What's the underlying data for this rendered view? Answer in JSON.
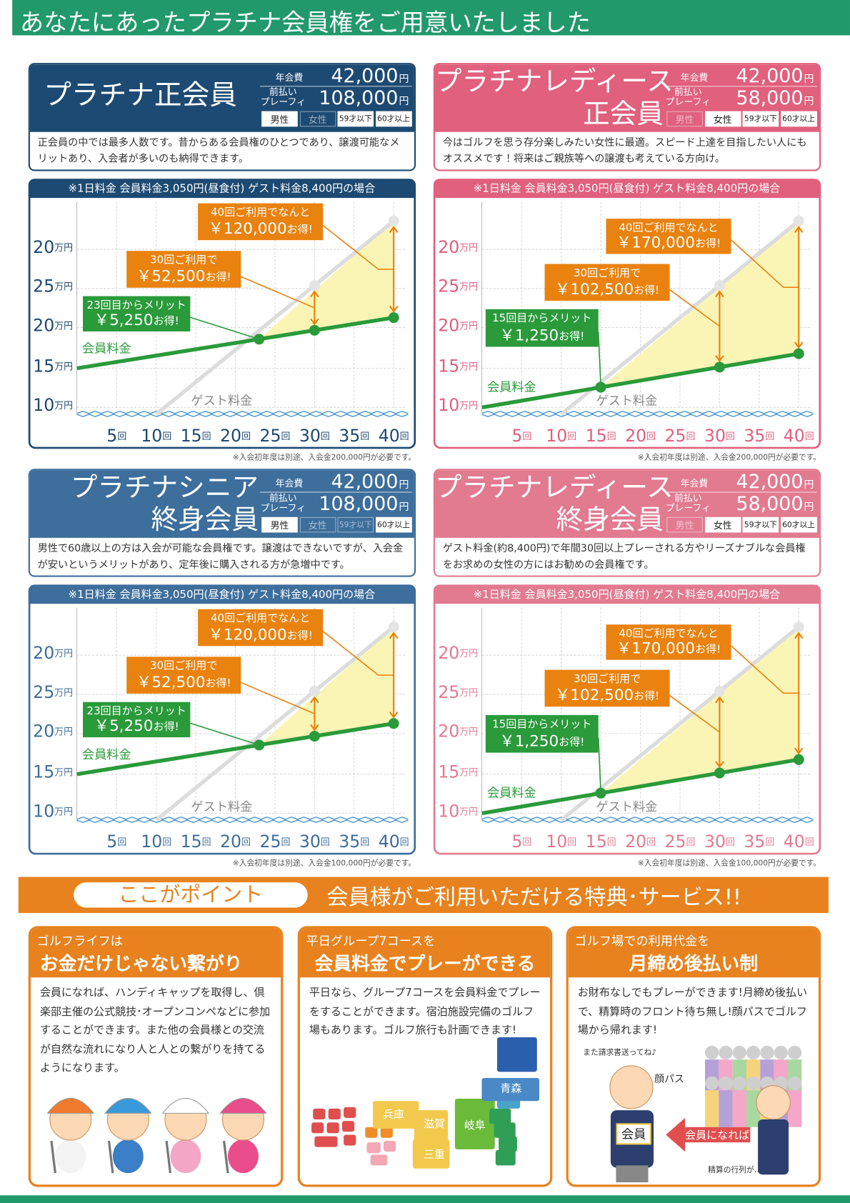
{
  "header": {
    "title": "あなたにあったプラチナ会員権をご用意いたしました"
  },
  "plans": [
    {
      "name": [
        "プラチナ正会員"
      ],
      "color": "#1d4a72",
      "fee_label": "年会費",
      "fee": "42,000",
      "unit": "円",
      "prepay_label": [
        "前払い",
        "プレーフィ"
      ],
      "prepay": "108,000",
      "tags": [
        "男性",
        "女性",
        "59才以下",
        "60才以上"
      ],
      "tag_active": [
        true,
        false,
        true,
        true
      ],
      "description": "正会員の中では最多人数です。昔からある会員権のひとつであり、譲渡可能なメリットあり、入会者が多いのも納得できます。",
      "chart": {
        "caption": "※1日料金 会員料金3,050円(昼食付) ゲスト料金8,400円の場合",
        "y_labels": [
          "20",
          "25",
          "20",
          "15",
          "10"
        ],
        "y_unit": "万円",
        "x_labels": [
          "5",
          "10",
          "15",
          "20",
          "25",
          "30",
          "35",
          "40"
        ],
        "x_unit": "回",
        "member_label": "会員料金",
        "guest_label": "ゲスト料金",
        "callouts": [
          {
            "text": "40回ご利用でなんと",
            "amount": "￥120,000",
            "suffix": "お得!"
          },
          {
            "text": "30回ご利用で",
            "amount": "￥52,500",
            "suffix": "お得!"
          },
          {
            "text": "23回目からメリット",
            "amount": "￥5,250",
            "suffix": "お得!"
          }
        ]
      },
      "note": "※入会初年度は別途、入会金200,000円が必要です。"
    },
    {
      "name": [
        "プラチナレディース",
        "正会員"
      ],
      "color": "#e0607d",
      "fee_label": "年会費",
      "fee": "42,000",
      "unit": "円",
      "prepay_label": [
        "前払い",
        "プレーフィ"
      ],
      "prepay": "58,000",
      "tags": [
        "男性",
        "女性",
        "59才以下",
        "60才以上"
      ],
      "tag_active": [
        false,
        true,
        true,
        true
      ],
      "description": "今はゴルフを思う存分楽しみたい女性に最適。スピード上達を目指したい人にもオススメです！将来はご親族等への譲渡も考えている方向け。",
      "chart": {
        "caption": "※1日料金 会員料金3,050円(昼食付) ゲスト料金8,400円の場合",
        "y_labels": [
          "20",
          "25",
          "20",
          "15",
          "10"
        ],
        "y_unit": "万円",
        "x_labels": [
          "5",
          "10",
          "15",
          "20",
          "25",
          "30",
          "35",
          "40"
        ],
        "x_unit": "回",
        "member_label": "会員料金",
        "guest_label": "ゲスト料金",
        "callouts": [
          {
            "text": "40回ご利用でなんと",
            "amount": "￥170,000",
            "suffix": "お得!"
          },
          {
            "text": "30回ご利用で",
            "amount": "￥102,500",
            "suffix": "お得!"
          },
          {
            "text": "15回目からメリット",
            "amount": "￥1,250",
            "suffix": "お得!"
          }
        ]
      },
      "note": "※入会初年度は別途、入会金200,000円が必要です。"
    },
    {
      "name": [
        "プラチナシニア",
        "終身会員"
      ],
      "color": "#3d6e9c",
      "fee_label": "年会費",
      "fee": "42,000",
      "unit": "円",
      "prepay_label": [
        "前払い",
        "プレーフィ"
      ],
      "prepay": "108,000",
      "tags": [
        "男性",
        "女性",
        "59才以下",
        "60才以上"
      ],
      "tag_active": [
        true,
        false,
        false,
        true
      ],
      "description": "男性で60歳以上の方は入会が可能な会員権です。譲渡はできないですが、入会金が安いというメリットがあり、定年後に購入される方が急増中です。",
      "chart": {
        "caption": "※1日料金 会員料金3,050円(昼食付) ゲスト料金8,400円の場合",
        "y_labels": [
          "20",
          "25",
          "20",
          "15",
          "10"
        ],
        "y_unit": "万円",
        "x_labels": [
          "5",
          "10",
          "15",
          "20",
          "25",
          "30",
          "35",
          "40"
        ],
        "x_unit": "回",
        "member_label": "会員料金",
        "guest_label": "ゲスト料金",
        "callouts": [
          {
            "text": "40回ご利用でなんと",
            "amount": "￥120,000",
            "suffix": "お得!"
          },
          {
            "text": "30回ご利用で",
            "amount": "￥52,500",
            "suffix": "お得!"
          },
          {
            "text": "23回目からメリット",
            "amount": "￥5,250",
            "suffix": "お得!"
          }
        ]
      },
      "note": "※入会初年度は別途、入会金100,000円が必要です。"
    },
    {
      "name": [
        "プラチナレディース",
        "終身会員"
      ],
      "color": "#e27a90",
      "fee_label": "年会費",
      "fee": "42,000",
      "unit": "円",
      "prepay_label": [
        "前払い",
        "プレーフィ"
      ],
      "prepay": "58,000",
      "tags": [
        "男性",
        "女性",
        "59才以下",
        "60才以上"
      ],
      "tag_active": [
        false,
        true,
        true,
        true
      ],
      "description": "ゲスト料金(約8,400円)で年間30回以上プレーされる方やリーズナブルな会員権をお求めの女性の方にはお勧めの会員権です。",
      "chart": {
        "caption": "※1日料金 会員料金3,050円(昼食付) ゲスト料金8,400円の場合",
        "y_labels": [
          "20",
          "25",
          "20",
          "15",
          "10"
        ],
        "y_unit": "万円",
        "x_labels": [
          "5",
          "10",
          "15",
          "20",
          "25",
          "30",
          "35",
          "40"
        ],
        "x_unit": "回",
        "member_label": "会員料金",
        "guest_label": "ゲスト料金",
        "callouts": [
          {
            "text": "40回ご利用でなんと",
            "amount": "￥170,000",
            "suffix": "お得!"
          },
          {
            "text": "30回ご利用で",
            "amount": "￥102,500",
            "suffix": "お得!"
          },
          {
            "text": "15回目からメリット",
            "amount": "￥1,250",
            "suffix": "お得!"
          }
        ]
      },
      "note": "※入会初年度は別途、入会金100,000円が必要です。"
    }
  ],
  "points": {
    "badge": "ここがポイント",
    "headline": "会員様がご利用いただける特典･サービス!!",
    "cards": [
      {
        "lead": "ゴルフライフは",
        "title": "お金だけじゃない繋がり",
        "body": "会員になれば、ハンディキャップを取得し、倶楽部主催の公式競技･オープンコンペなどに参加することができます。また他の会員様との交流が自然な流れになり人と人との繋がりを持てるようになります。"
      },
      {
        "lead": "平日グループ7コースを",
        "title": "会員料金でプレーができる",
        "body": "平日なら、グループ7コースを会員料金でプレーをすることができます。宿泊施設完備のゴルフ場もあります。ゴルフ旅行も計画できます!"
      },
      {
        "lead": "ゴルフ場での利用代金を",
        "title": "月締め後払い制",
        "body": "お財布なしでもプレーができます!月締め後払いで、精算時のフロント待ち無し!顔パスでゴルフ場から帰れます!"
      }
    ],
    "map_labels": [
      "兵庫",
      "滋賀",
      "三重",
      "岐阜",
      "青森"
    ],
    "speech": {
      "request": "また請求書送ってね♪",
      "pass": "顔パス",
      "member": "会員",
      "become": "会員になれば",
      "queue": "精算の行列が…"
    }
  }
}
